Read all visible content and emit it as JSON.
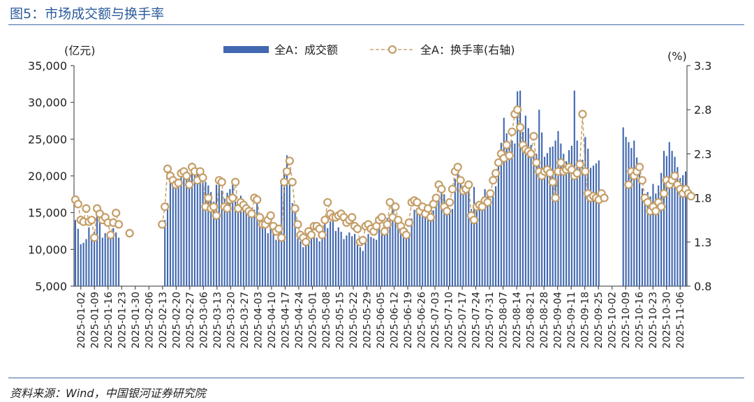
{
  "figure": {
    "title": "图5：市场成交额与换手率",
    "source": "资料来源：Wind，中国银河证券研究院"
  },
  "colors": {
    "bar": "#4168b0",
    "line": "#c9a772",
    "marker_edge": "#c49e68",
    "marker_fill": "#ffffff",
    "title": "#2b5a9b",
    "rule": "#3a6aa6"
  },
  "chart_data": {
    "type": "bar",
    "left_unit": "(亿元)",
    "right_unit": "(%)",
    "ylim": [
      5000,
      35000
    ],
    "y_ticks": [
      "5,000",
      "10,000",
      "15,000",
      "20,000",
      "25,000",
      "30,000",
      "35,000"
    ],
    "y2lim": [
      0.8,
      3.3
    ],
    "y2_ticks": [
      "0.8",
      "1.3",
      "1.8",
      "2.3",
      "2.8",
      "3.3"
    ],
    "legend_position": "top-center",
    "x_tick_labels": [
      "2025-01-02",
      "2025-01-09",
      "2025-01-16",
      "2025-01-23",
      "2025-01-30",
      "2025-02-06",
      "2025-02-13",
      "2025-02-20",
      "2025-02-27",
      "2025-03-06",
      "2025-03-13",
      "2025-03-20",
      "2025-03-27",
      "2025-04-03",
      "2025-04-10",
      "2025-04-17",
      "2025-04-24",
      "2025-05-01",
      "2025-05-08",
      "2025-05-15",
      "2025-05-22",
      "2025-05-29",
      "2025-06-05",
      "2025-06-12",
      "2025-06-19",
      "2025-06-26",
      "2025-07-03",
      "2025-07-10",
      "2025-07-17",
      "2025-07-24",
      "2025-07-31",
      "2025-08-07",
      "2025-08-14",
      "2025-08-21",
      "2025-08-28",
      "2025-09-04",
      "2025-09-11",
      "2025-09-18",
      "2025-09-25",
      "2025-10-02",
      "2025-10-09",
      "2025-10-16",
      "2025-10-23",
      "2025-10-30",
      "2025-11-06"
    ],
    "series": [
      {
        "name": "全A：成交额",
        "kind": "bar",
        "axis": "left",
        "values": [
          14000,
          12800,
          10700,
          10900,
          11400,
          13000,
          11800,
          12400,
          15200,
          14400,
          11600,
          12200,
          12000,
          11800,
          12900,
          12300,
          11600,
          null,
          null,
          null,
          null,
          null,
          null,
          null,
          null,
          null,
          null,
          null,
          null,
          null,
          null,
          null,
          null,
          14000,
          16300,
          19500,
          18500,
          18500,
          18600,
          19800,
          20200,
          20000,
          20300,
          21800,
          21000,
          21000,
          20600,
          19800,
          19200,
          18700,
          17800,
          16500,
          18800,
          19300,
          18000,
          16900,
          17700,
          18200,
          18800,
          16500,
          15800,
          17300,
          16700,
          15600,
          15200,
          14800,
          15400,
          16300,
          13800,
          13200,
          13000,
          12200,
          13300,
          12700,
          11300,
          12900,
          19300,
          21000,
          22800,
          19000,
          16300,
          15600,
          11500,
          11100,
          10300,
          11600,
          10700,
          12300,
          12200,
          11600,
          11100,
          12600,
          14000,
          12900,
          13800,
          14300,
          12500,
          13000,
          12400,
          11400,
          11900,
          12300,
          11800,
          12100,
          11400,
          10300,
          9800,
          10900,
          12100,
          11700,
          11500,
          11300,
          13200,
          12700,
          13100,
          14300,
          14200,
          15700,
          14300,
          12800,
          12300,
          12900,
          11800,
          12000,
          14200,
          15400,
          15600,
          14900,
          15000,
          14900,
          14600,
          14500,
          15300,
          16000,
          16900,
          18600,
          17500,
          16200,
          14900,
          15500,
          19600,
          20700,
          19500,
          17800,
          18400,
          18300,
          15500,
          18500,
          15200,
          16000,
          16600,
          18200,
          17500,
          16900,
          17200,
          18600,
          21300,
          24500,
          27900,
          25800,
          24400,
          24800,
          24400,
          31500,
          31600,
          26000,
          28200,
          26500,
          24200,
          23200,
          23000,
          29000,
          25900,
          22600,
          23100,
          23900,
          24000,
          24800,
          26100,
          24400,
          23000,
          22000,
          23500,
          24100,
          31600,
          24800,
          21100,
          22200,
          25300,
          23700,
          21100,
          21400,
          21700,
          22100,
          null,
          null,
          null,
          null,
          null,
          null,
          null,
          null,
          26600,
          25300,
          24600,
          23800,
          24800,
          22500,
          20200,
          18300,
          16800,
          17800,
          17200,
          18900,
          17600,
          18700,
          20400,
          23400,
          22700,
          24600,
          23400,
          22600,
          21200,
          19700,
          20100,
          20600
        ]
      },
      {
        "name": "全A：换手率(右轴)",
        "kind": "line",
        "axis": "right",
        "values": [
          1.78,
          1.73,
          1.55,
          1.53,
          1.68,
          1.53,
          1.55,
          1.35,
          1.68,
          1.62,
          1.55,
          1.58,
          1.52,
          1.38,
          1.52,
          1.63,
          1.5,
          null,
          null,
          null,
          1.4,
          null,
          null,
          null,
          null,
          null,
          null,
          null,
          null,
          null,
          null,
          null,
          1.5,
          1.7,
          2.13,
          2.05,
          2.0,
          1.95,
          1.97,
          2.08,
          2.1,
          2.05,
          1.95,
          2.15,
          2.1,
          2.0,
          2.1,
          2.03,
          1.7,
          1.8,
          1.68,
          1.7,
          1.6,
          2.0,
          1.98,
          1.7,
          1.68,
          1.78,
          1.8,
          1.98,
          1.68,
          1.75,
          1.72,
          1.68,
          1.65,
          1.62,
          1.8,
          1.78,
          1.58,
          1.5,
          1.5,
          1.55,
          1.6,
          1.48,
          1.42,
          1.45,
          1.35,
          1.98,
          2.1,
          2.22,
          1.98,
          1.68,
          1.5,
          1.38,
          1.35,
          1.3,
          1.42,
          1.38,
          1.48,
          1.48,
          1.45,
          1.38,
          1.55,
          1.75,
          1.62,
          1.58,
          1.58,
          1.6,
          1.62,
          1.58,
          1.52,
          1.55,
          1.58,
          1.48,
          1.45,
          1.3,
          1.32,
          1.48,
          1.5,
          1.45,
          1.42,
          1.48,
          1.55,
          1.58,
          1.42,
          1.5,
          1.75,
          1.58,
          1.7,
          1.55,
          1.48,
          1.42,
          1.38,
          1.52,
          1.75,
          1.77,
          1.75,
          1.65,
          1.7,
          1.62,
          1.68,
          1.58,
          1.73,
          1.8,
          1.95,
          1.9,
          1.7,
          1.65,
          1.75,
          1.9,
          2.1,
          2.15,
          2.0,
          1.88,
          1.9,
          1.95,
          1.6,
          1.55,
          1.7,
          1.72,
          1.7,
          1.77,
          1.75,
          1.85,
          2.0,
          2.08,
          2.2,
          2.3,
          2.25,
          2.4,
          2.28,
          2.55,
          2.75,
          2.8,
          2.6,
          2.4,
          2.35,
          2.33,
          2.3,
          2.5,
          2.2,
          2.1,
          2.05,
          2.1,
          2.12,
          2.08,
          1.98,
          1.8,
          2.1,
          2.2,
          2.1,
          2.12,
          2.15,
          2.12,
          2.05,
          2.08,
          2.18,
          2.75,
          2.1,
          1.85,
          1.8,
          1.82,
          1.8,
          1.78,
          1.85,
          1.8,
          null,
          null,
          null,
          null,
          null,
          null,
          null,
          null,
          1.95,
          2.1,
          2.05,
          2.1,
          2.15,
          2.0,
          1.8,
          1.75,
          1.65,
          1.7,
          1.65,
          1.75,
          1.7,
          1.85,
          2.0,
          1.95,
          2.0,
          2.05,
          1.95,
          1.9,
          1.85,
          1.9,
          1.85,
          1.82
        ]
      }
    ]
  }
}
